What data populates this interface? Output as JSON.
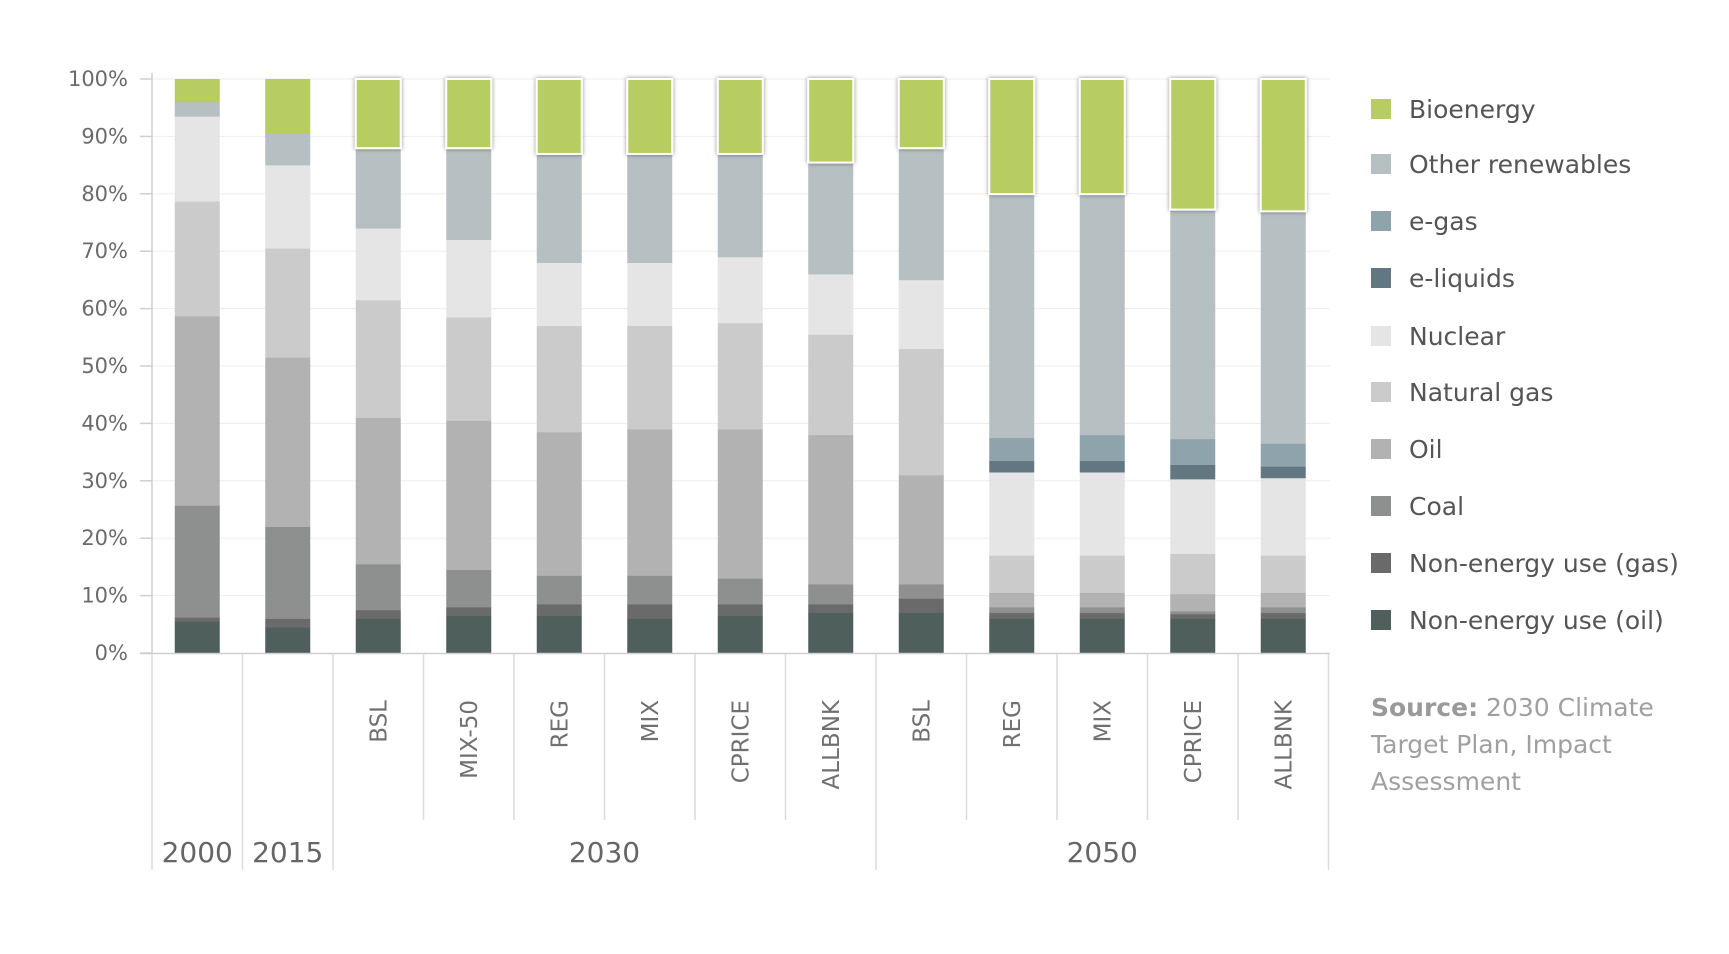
{
  "chart_data": {
    "type": "bar",
    "stacked": true,
    "y_ticks": [
      "0%",
      "10%",
      "20%",
      "30%",
      "40%",
      "50%",
      "60%",
      "70%",
      "80%",
      "90%",
      "100%"
    ],
    "ylim": [
      0,
      100
    ],
    "grid": true,
    "legend_position": "right",
    "categories": [
      "",
      "",
      "BSL",
      "MIX-50",
      "REG",
      "MIX",
      "CPRICE",
      "ALLBNK",
      "BSL",
      "REG",
      "MIX",
      "CPRICE",
      "ALLBNK"
    ],
    "groups": [
      {
        "label": "2000",
        "start": 0,
        "end": 0
      },
      {
        "label": "2015",
        "start": 1,
        "end": 1
      },
      {
        "label": "2030",
        "start": 2,
        "end": 7
      },
      {
        "label": "2050",
        "start": 8,
        "end": 12
      }
    ],
    "series": [
      {
        "name": "Non-energy use (oil)",
        "color": "#4e5f5c",
        "values": [
          5.5,
          4.5,
          6,
          6.5,
          6.5,
          6,
          6.5,
          7,
          7,
          6,
          6,
          6,
          6
        ]
      },
      {
        "name": "Non-energy use (gas)",
        "color": "#6a6a6a",
        "values": [
          0.7,
          1.5,
          1.5,
          1.5,
          2,
          2.5,
          2,
          1.5,
          2.5,
          1,
          1,
          0.8,
          1
        ]
      },
      {
        "name": "Coal",
        "color": "#8e8f8f",
        "values": [
          19.5,
          16,
          8,
          6.5,
          5,
          5,
          4.5,
          3.5,
          2.5,
          1,
          1,
          0.5,
          1
        ]
      },
      {
        "name": "Oil",
        "color": "#b2b2b2",
        "values": [
          33,
          29.5,
          25.5,
          26,
          25,
          25.5,
          26,
          26,
          19,
          2.5,
          2.5,
          3,
          2.5
        ]
      },
      {
        "name": "Natural gas",
        "color": "#cbcbcb",
        "values": [
          20,
          19,
          20.5,
          18,
          18.5,
          18,
          18.5,
          17.5,
          22,
          6.5,
          6.5,
          7,
          6.5
        ]
      },
      {
        "name": "Nuclear",
        "color": "#e5e5e5",
        "values": [
          14.8,
          14.5,
          12.5,
          13.5,
          11,
          11,
          11.5,
          10.5,
          12,
          14.5,
          14.5,
          13,
          13.5
        ]
      },
      {
        "name": "e-liquids",
        "color": "#637783",
        "values": [
          0,
          0,
          0,
          0,
          0,
          0,
          0,
          0,
          0,
          2,
          2,
          2.5,
          2
        ]
      },
      {
        "name": "e-gas",
        "color": "#8ea3ab",
        "values": [
          0,
          0,
          0,
          0,
          0,
          0,
          0,
          0,
          0,
          4,
          4.5,
          4.5,
          4
        ]
      },
      {
        "name": "Other renewables",
        "color": "#b6bfc2",
        "values": [
          2.5,
          5.5,
          14,
          16,
          19,
          19,
          18,
          19.5,
          23,
          42.5,
          42,
          40,
          40.5
        ]
      },
      {
        "name": "Bioenergy",
        "color": "#b7cd62",
        "values": [
          4,
          9.5,
          12,
          12,
          13,
          13,
          13,
          14.5,
          12,
          20,
          20,
          22.7,
          23
        ]
      }
    ],
    "highlighted_categories": [
      2,
      3,
      4,
      5,
      6,
      7,
      8,
      9,
      10,
      11,
      12
    ]
  },
  "legend_order": [
    "Bioenergy",
    "Other renewables",
    "e-gas",
    "e-liquids",
    "Nuclear",
    "Natural gas",
    "Oil",
    "Coal",
    "Non-energy use (gas)",
    "Non-energy use (oil)"
  ],
  "source": {
    "label": "Source:",
    "lines": [
      "2030 Climate",
      "Target Plan, Impact",
      "Assessment"
    ]
  }
}
